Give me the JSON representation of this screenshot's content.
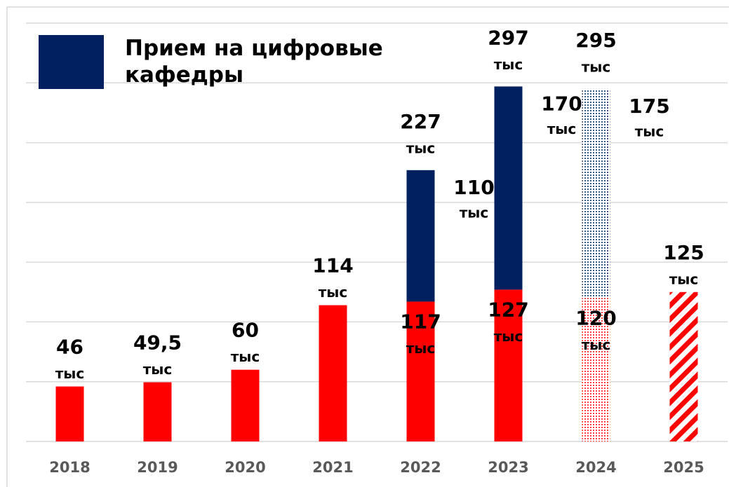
{
  "chart_data": {
    "type": "stacked_bar",
    "categories": [
      "2018",
      "2019",
      "2020",
      "2021",
      "2022",
      "2023",
      "2024",
      "2025"
    ],
    "series": [
      {
        "color": "#ff0000",
        "values": [
          46,
          49.5,
          60,
          114,
          117,
          127,
          120,
          125
        ],
        "value_labels": [
          [
            "46",
            "тыс"
          ],
          [
            "49,5",
            "тыс"
          ],
          [
            "60",
            "тыс"
          ],
          [
            "114",
            "тыс"
          ],
          [
            "117",
            "тыс"
          ],
          [
            "127",
            "тыс"
          ],
          [
            "120",
            "тыс"
          ],
          [
            "125",
            "тыс"
          ]
        ],
        "styles": [
          "solid",
          "solid",
          "solid",
          "solid",
          "solid",
          "solid",
          "dotted",
          "striped"
        ]
      },
      {
        "name": "Прием на цифровые кафедры",
        "color": "#002060",
        "values": [
          null,
          null,
          null,
          null,
          110,
          170,
          175,
          null
        ],
        "value_labels": [
          null,
          null,
          null,
          null,
          [
            "110",
            "тыс"
          ],
          [
            "170",
            "тыс"
          ],
          [
            "175",
            "тыс"
          ],
          null
        ],
        "styles": [
          "solid",
          "solid",
          "solid",
          "solid",
          "solid",
          "solid",
          "dotted",
          "solid"
        ]
      }
    ],
    "totals": {
      "values": [
        null,
        null,
        null,
        null,
        227,
        297,
        295,
        null
      ],
      "value_labels": [
        null,
        null,
        null,
        null,
        [
          "227",
          "тыс"
        ],
        [
          "297",
          "тыс"
        ],
        [
          "295",
          "тыс"
        ],
        null
      ]
    },
    "ylim": [
      0,
      350
    ],
    "yticks": [
      0,
      50,
      100,
      150,
      200,
      250,
      300,
      350
    ],
    "grid": true
  }
}
